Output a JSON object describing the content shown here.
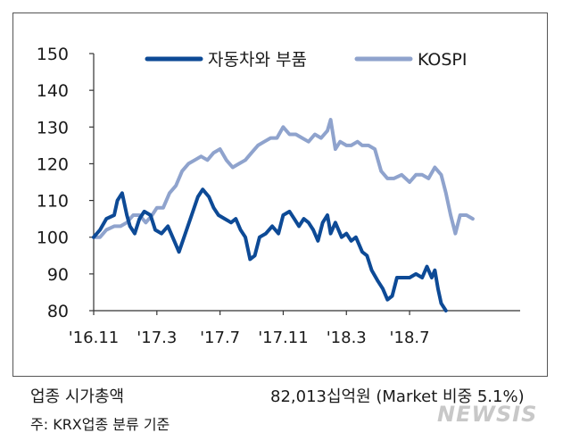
{
  "chart_data": {
    "type": "line",
    "title": "",
    "xlabel": "",
    "ylabel": "",
    "ylim": [
      80,
      150
    ],
    "yticks": [
      80,
      90,
      100,
      110,
      120,
      130,
      140,
      150
    ],
    "xlim": [
      0,
      27
    ],
    "xticks": [
      {
        "x": 0,
        "label": "'16.11"
      },
      {
        "x": 4,
        "label": "'17.3"
      },
      {
        "x": 8,
        "label": "'17.7"
      },
      {
        "x": 12,
        "label": "'17.11"
      },
      {
        "x": 16,
        "label": "'18.3"
      },
      {
        "x": 20,
        "label": "'18.7"
      }
    ],
    "legend_position": "top",
    "series": [
      {
        "name": "자동차와 부품",
        "color": "#0d4a96",
        "width": 4,
        "points": [
          [
            0,
            100
          ],
          [
            0.4,
            102
          ],
          [
            0.8,
            105
          ],
          [
            1.3,
            106
          ],
          [
            1.5,
            110
          ],
          [
            1.8,
            112
          ],
          [
            2.1,
            106
          ],
          [
            2.3,
            103
          ],
          [
            2.6,
            101
          ],
          [
            2.9,
            105
          ],
          [
            3.2,
            107
          ],
          [
            3.6,
            106
          ],
          [
            3.9,
            102
          ],
          [
            4.3,
            101
          ],
          [
            4.7,
            103
          ],
          [
            5.1,
            99
          ],
          [
            5.4,
            96
          ],
          [
            5.8,
            101
          ],
          [
            6.2,
            106
          ],
          [
            6.6,
            111
          ],
          [
            6.9,
            113
          ],
          [
            7.3,
            111
          ],
          [
            7.6,
            108
          ],
          [
            7.9,
            106
          ],
          [
            8.3,
            105
          ],
          [
            8.7,
            104
          ],
          [
            9.0,
            105
          ],
          [
            9.3,
            102
          ],
          [
            9.6,
            100
          ],
          [
            9.9,
            94
          ],
          [
            10.2,
            95
          ],
          [
            10.5,
            100
          ],
          [
            10.9,
            101
          ],
          [
            11.3,
            103
          ],
          [
            11.7,
            101
          ],
          [
            12.0,
            106
          ],
          [
            12.4,
            107
          ],
          [
            12.7,
            105
          ],
          [
            13.0,
            103
          ],
          [
            13.3,
            105
          ],
          [
            13.6,
            104
          ],
          [
            13.9,
            102
          ],
          [
            14.2,
            99
          ],
          [
            14.5,
            104
          ],
          [
            14.8,
            106
          ],
          [
            15.0,
            101
          ],
          [
            15.3,
            104
          ],
          [
            15.7,
            100
          ],
          [
            16.0,
            101
          ],
          [
            16.3,
            99
          ],
          [
            16.6,
            100
          ],
          [
            17.0,
            96
          ],
          [
            17.3,
            95
          ],
          [
            17.6,
            91
          ],
          [
            18.0,
            88
          ],
          [
            18.3,
            86
          ],
          [
            18.6,
            83
          ],
          [
            18.9,
            84
          ],
          [
            19.2,
            89
          ],
          [
            19.6,
            89
          ],
          [
            20.0,
            89
          ],
          [
            20.4,
            90
          ],
          [
            20.8,
            89
          ],
          [
            21.1,
            92
          ],
          [
            21.4,
            89
          ],
          [
            21.6,
            91
          ],
          [
            21.8,
            86
          ],
          [
            22.0,
            82
          ],
          [
            22.3,
            80
          ]
        ]
      },
      {
        "name": "KOSPI",
        "color": "#8fa3cd",
        "width": 4,
        "points": [
          [
            0,
            100
          ],
          [
            0.4,
            100
          ],
          [
            0.8,
            102
          ],
          [
            1.3,
            103
          ],
          [
            1.7,
            103
          ],
          [
            2.1,
            104
          ],
          [
            2.5,
            106
          ],
          [
            2.9,
            106
          ],
          [
            3.3,
            104
          ],
          [
            3.7,
            106
          ],
          [
            4.0,
            108
          ],
          [
            4.4,
            108
          ],
          [
            4.8,
            112
          ],
          [
            5.2,
            114
          ],
          [
            5.6,
            118
          ],
          [
            6.0,
            120
          ],
          [
            6.4,
            121
          ],
          [
            6.8,
            122
          ],
          [
            7.2,
            121
          ],
          [
            7.6,
            123
          ],
          [
            8.0,
            124
          ],
          [
            8.4,
            121
          ],
          [
            8.8,
            119
          ],
          [
            9.2,
            120
          ],
          [
            9.6,
            121
          ],
          [
            10.0,
            123
          ],
          [
            10.4,
            125
          ],
          [
            10.8,
            126
          ],
          [
            11.2,
            127
          ],
          [
            11.6,
            127
          ],
          [
            12.0,
            130
          ],
          [
            12.4,
            128
          ],
          [
            12.8,
            128
          ],
          [
            13.2,
            127
          ],
          [
            13.6,
            126
          ],
          [
            14.0,
            128
          ],
          [
            14.4,
            127
          ],
          [
            14.8,
            129
          ],
          [
            15.0,
            132
          ],
          [
            15.3,
            124
          ],
          [
            15.6,
            126
          ],
          [
            16.0,
            125
          ],
          [
            16.3,
            125
          ],
          [
            16.7,
            126
          ],
          [
            17.0,
            125
          ],
          [
            17.4,
            125
          ],
          [
            17.8,
            124
          ],
          [
            18.2,
            118
          ],
          [
            18.6,
            116
          ],
          [
            19.0,
            116
          ],
          [
            19.5,
            117
          ],
          [
            20.0,
            115
          ],
          [
            20.4,
            117
          ],
          [
            20.8,
            117
          ],
          [
            21.2,
            116
          ],
          [
            21.6,
            119
          ],
          [
            22.0,
            117
          ],
          [
            22.3,
            112
          ],
          [
            22.6,
            106
          ],
          [
            22.9,
            101
          ],
          [
            23.2,
            106
          ],
          [
            23.6,
            106
          ],
          [
            24.0,
            105
          ]
        ]
      }
    ]
  },
  "footer": {
    "left": "업종 시가총액",
    "right": "82,013십억원 (Market 비중 5.1%)",
    "note": "주: KRX업종 분류 기준"
  },
  "watermark": "NEWSIS"
}
